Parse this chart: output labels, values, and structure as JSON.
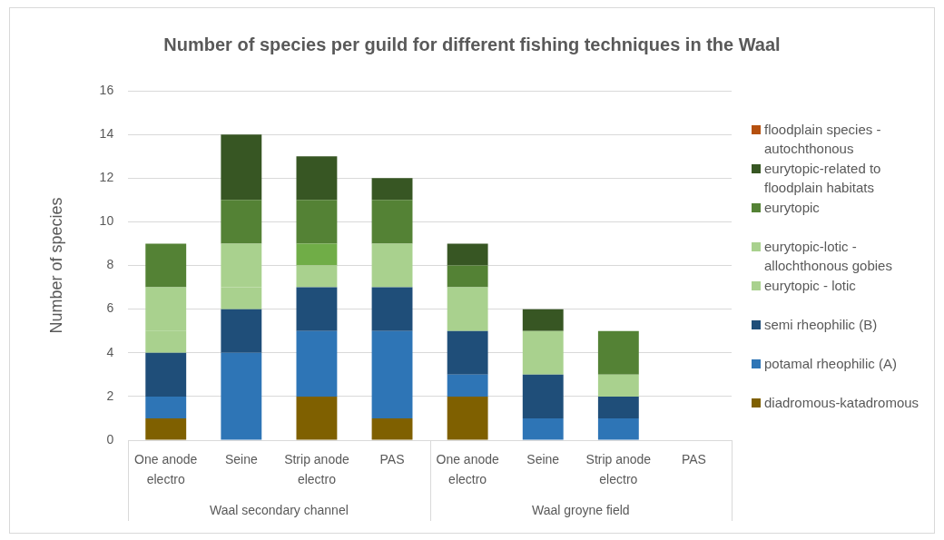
{
  "chart_data": {
    "type": "bar",
    "title": "Number of species per guild for different fishing techniques in the Waal",
    "ylabel": "Number of species",
    "categories": [
      "One anode electro",
      "Seine",
      "Strip anode electro",
      "PAS",
      "One anode electro",
      "Seine",
      "Strip anode electro",
      "PAS"
    ],
    "annotations": [
      "Waal secondary channel",
      "Waal groyne field"
    ],
    "stacked": true,
    "series": [
      {
        "name": "diadromous-katadromous",
        "color": "#7f6000",
        "values": [
          1,
          0,
          2,
          1,
          2,
          0,
          0,
          0
        ]
      },
      {
        "name": "potamal rheophilic (A)",
        "color": "#2e75b6",
        "values": [
          1,
          4,
          3,
          4,
          1,
          1,
          1,
          0
        ]
      },
      {
        "name": "semi rheophilic (B)",
        "color": "#1f4e79",
        "values": [
          2,
          2,
          2,
          2,
          2,
          2,
          1,
          0
        ]
      },
      {
        "name": "eurytopic - lotic",
        "color": "#a9d18e",
        "values": [
          1,
          1,
          1,
          2,
          2,
          2,
          1,
          0
        ]
      },
      {
        "name": "eurytopic-lotic - allochthonous gobies",
        "color": "#a9d18e",
        "values": [
          2,
          2,
          0,
          0,
          0,
          0,
          0,
          0
        ]
      },
      {
        "color": "#70ad47",
        "values": [
          0,
          0,
          1,
          0,
          0,
          0,
          0,
          0
        ]
      },
      {
        "name": "eurytopic",
        "color": "#548235",
        "values": [
          2,
          2,
          2,
          2,
          1,
          0,
          2,
          0
        ]
      },
      {
        "name": "eurytopic-related to floodplain habitats",
        "color": "#375623",
        "values": [
          0,
          3,
          2,
          1,
          1,
          1,
          0,
          0
        ]
      },
      {
        "name": "floodplain species - autochthonous",
        "color": "#b5500f",
        "values": [
          0,
          0,
          0,
          0,
          0,
          0,
          0,
          0
        ]
      }
    ],
    "ylim": [
      0,
      16
    ],
    "yticks": [
      0,
      2,
      4,
      6,
      8,
      10,
      12,
      14,
      16
    ],
    "grid": "y",
    "legend": "right"
  }
}
